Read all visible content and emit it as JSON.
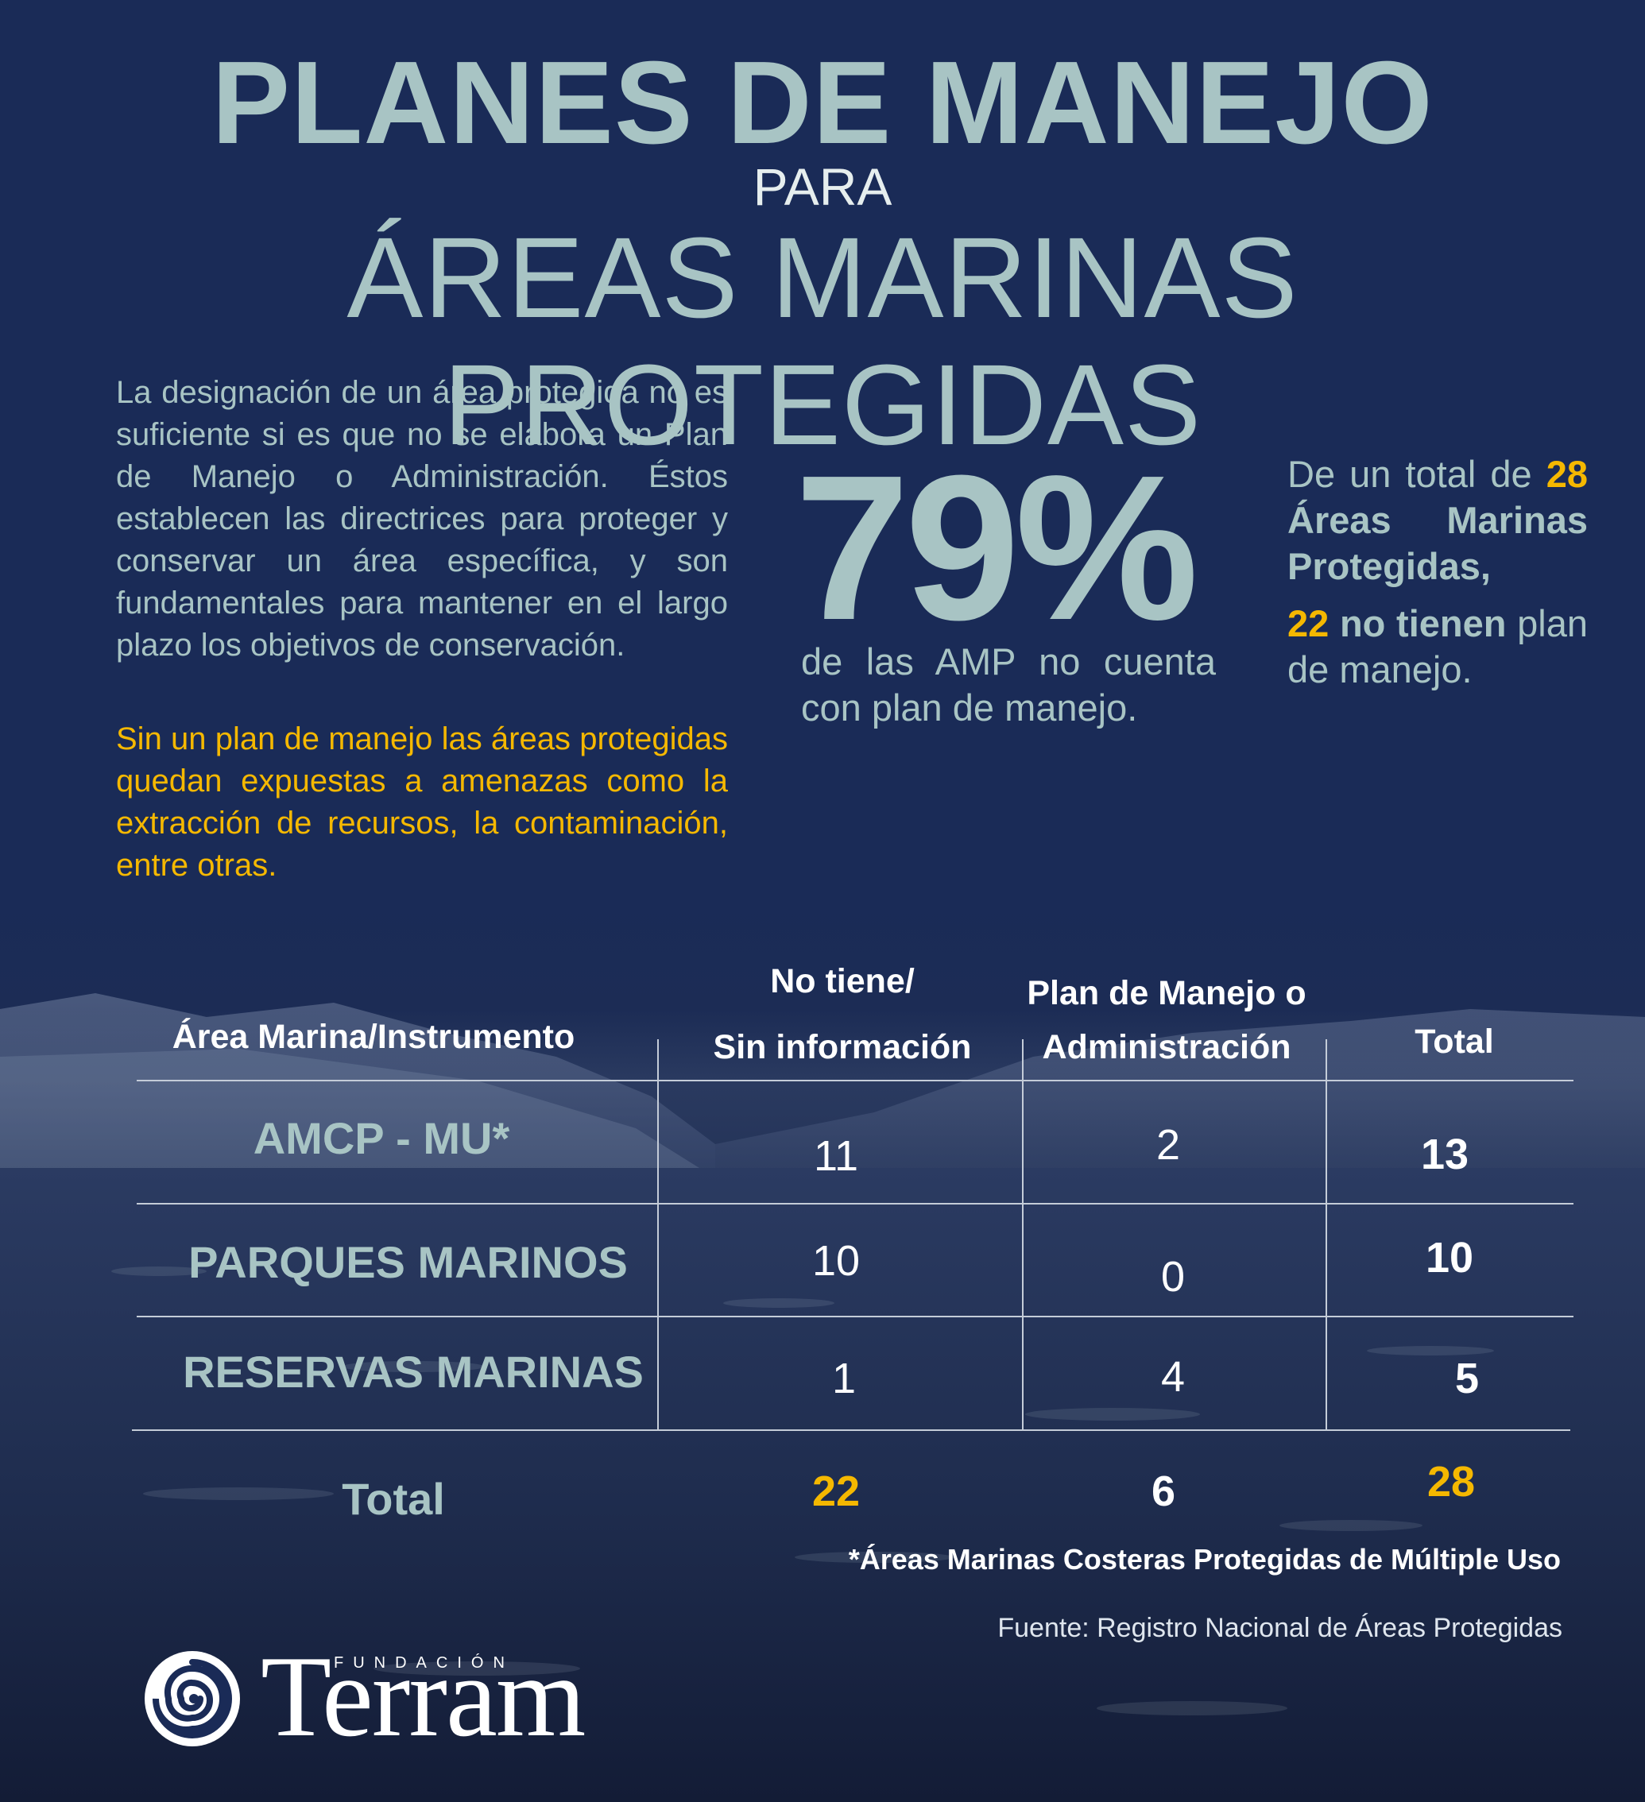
{
  "header": {
    "title": "PLANES DE MANEJO",
    "para": "PARA",
    "subtitle": "ÁREAS MARINAS PROTEGIDAS"
  },
  "intro": {
    "paragraph": "La designación de un área protegida no es suficiente si es que no se elabora un Plan de Manejo o Administración. Éstos establecen las directrices para proteger y conservar un área específica, y son fundamentales para mantener en el largo plazo los objetivos de conservación.",
    "highlight": "Sin un plan de manejo las áreas protegidas quedan expuestas a amenazas como la extracción de recursos, la contaminación, entre otras."
  },
  "stat": {
    "percent": "79%",
    "caption": "de las AMP no cuenta con plan de manejo.",
    "right_prefix": "De un total de",
    "right_total": "28",
    "right_areas": "Áreas Marinas Protegidas,",
    "right_count": "22",
    "right_no_tienen": "no tienen",
    "right_suffix": "plan de manejo."
  },
  "table": {
    "headers": {
      "area": "Área Marina/Instrumento",
      "no_tiene_1": "No tiene/",
      "no_tiene_2": "Sin información",
      "plan_1": "Plan de Manejo o",
      "plan_2": "Administración",
      "total": "Total"
    },
    "rows": [
      {
        "label": "AMCP - MU*",
        "no_tiene": "11",
        "plan": "2",
        "total": "13"
      },
      {
        "label": "PARQUES MARINOS",
        "no_tiene": "10",
        "plan": "0",
        "total": "10"
      },
      {
        "label": "RESERVAS MARINAS",
        "no_tiene": "1",
        "plan": "4",
        "total": "5"
      }
    ],
    "totals": {
      "label": "Total",
      "no_tiene": "22",
      "plan": "6",
      "total": "28"
    }
  },
  "footnote": "*Áreas Marinas Costeras Protegidas de Múltiple Uso",
  "source": "Fuente: Registro Nacional de Áreas Protegidas",
  "logo": {
    "small": "FUNDACIÓN",
    "word": "Terram"
  },
  "colors": {
    "background": "#1a2b57",
    "accent_teal": "#a8c4c4",
    "accent_yellow": "#f5b800",
    "white": "#ffffff"
  }
}
